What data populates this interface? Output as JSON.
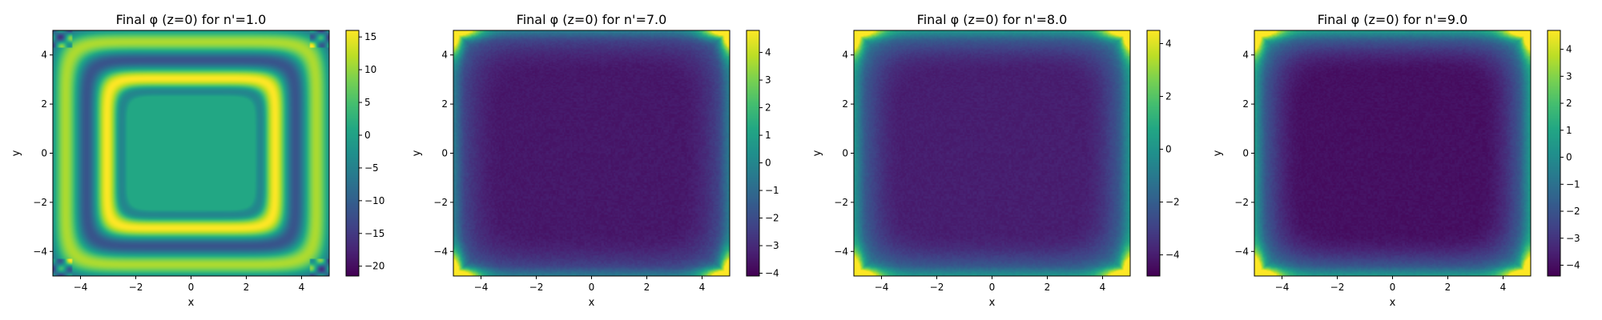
{
  "chart_data": [
    {
      "type": "heatmap",
      "title": "Final φ (z=0) for n'=1.0",
      "xlabel": "x",
      "ylabel": "y",
      "xlim": [
        -5,
        5
      ],
      "ylim": [
        -5,
        5
      ],
      "xticks": [
        -4,
        -2,
        0,
        2,
        4
      ],
      "yticks": [
        -4,
        -2,
        0,
        2,
        4
      ],
      "colorbar": {
        "min": -21.5,
        "max": 16.0,
        "ticks": [
          -20,
          -15,
          -10,
          -5,
          0,
          5,
          10,
          15
        ],
        "tick_labels": [
          "−20",
          "−15",
          "−10",
          "−5",
          "0",
          "5",
          "10",
          "15"
        ]
      },
      "colormap": "viridis",
      "pattern": "concentric square ring oscillations: interior plateau ≈ 1, bright yellow ring ≈ 15 near |x|,|y| ≈ 3, alternating rings toward edges, checkerboard in corners"
    },
    {
      "type": "heatmap",
      "title": "Final φ (z=0) for n'=7.0",
      "xlabel": "x",
      "ylabel": "y",
      "xlim": [
        -5,
        5
      ],
      "ylim": [
        -5,
        5
      ],
      "xticks": [
        -4,
        -2,
        0,
        2,
        4
      ],
      "yticks": [
        -4,
        -2,
        0,
        2,
        4
      ],
      "colorbar": {
        "min": -4.1,
        "max": 4.8,
        "ticks": [
          -4,
          -3,
          -2,
          -1,
          0,
          1,
          2,
          3,
          4
        ],
        "tick_labels": [
          "−4",
          "−3",
          "−2",
          "−1",
          "0",
          "1",
          "2",
          "3",
          "4"
        ]
      },
      "colormap": "viridis",
      "pattern": "interior plateau ≈ -3.5, rising toward edges ≈ -1.5, bright corners ≈ 4.5"
    },
    {
      "type": "heatmap",
      "title": "Final φ (z=0) for n'=8.0",
      "xlabel": "x",
      "ylabel": "y",
      "xlim": [
        -5,
        5
      ],
      "ylim": [
        -5,
        5
      ],
      "xticks": [
        -4,
        -2,
        0,
        2,
        4
      ],
      "yticks": [
        -4,
        -2,
        0,
        2,
        4
      ],
      "colorbar": {
        "min": -4.8,
        "max": 4.5,
        "ticks": [
          -4,
          -2,
          0,
          2,
          4
        ],
        "tick_labels": [
          "−4",
          "−2",
          "0",
          "2",
          "4"
        ]
      },
      "colormap": "viridis",
      "pattern": "interior plateau ≈ -4, rising toward edges ≈ -1, bright corners ≈ 4.5"
    },
    {
      "type": "heatmap",
      "title": "Final φ (z=0) for n'=9.0",
      "xlabel": "x",
      "ylabel": "y",
      "xlim": [
        -5,
        5
      ],
      "ylim": [
        -5,
        5
      ],
      "xticks": [
        -4,
        -2,
        0,
        2,
        4
      ],
      "yticks": [
        -4,
        -2,
        0,
        2,
        4
      ],
      "colorbar": {
        "min": -4.4,
        "max": 4.7,
        "ticks": [
          -4,
          -3,
          -2,
          -1,
          0,
          1,
          2,
          3,
          4
        ],
        "tick_labels": [
          "−4",
          "−3",
          "−2",
          "−1",
          "0",
          "1",
          "2",
          "3",
          "4"
        ]
      },
      "colormap": "viridis",
      "pattern": "interior plateau ≈ -4, rising toward edges ≈ -0.5, bright corners ≈ 4.5"
    }
  ]
}
